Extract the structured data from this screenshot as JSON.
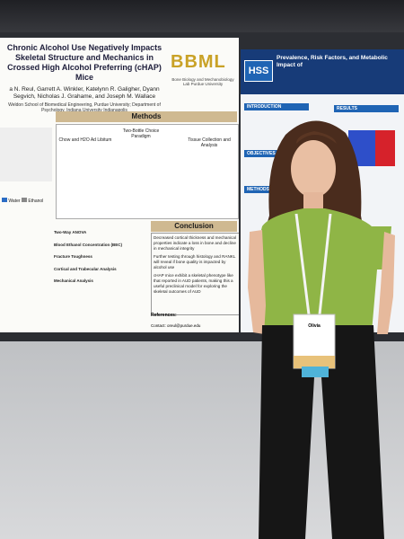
{
  "left_poster": {
    "title": "Chronic Alcohol Use Negatively Impacts Skeletal Structure and Mechanics in Crossed High Alcohol Preferring (cHAP) Mice",
    "authors": "a N. Reul, Garrett A. Winkler, Katelynn R. Galigher, Dyann Segvich, Nicholas J. Grahame, and Joseph M. Wallace",
    "affiliation": "Weldon School of Biomedical Engineering, Purdue University; Department of Psychology, Indiana University Indianapolis",
    "logo": "BBML",
    "logo_caption": "Bone Biology and Mechanobiology Lab Purdue University",
    "methods_title": "Methods",
    "methods_labels": [
      "Chow and H2O Ad Libitum",
      "Two-Bottle Choice Paradigm",
      "Tissue Collection and Analysis"
    ],
    "conclusion_title": "Conclusion",
    "conclusion_points": [
      "Decreased cortical thickness and mechanical properties indicate a loss in bone and decline in mechanical integrity",
      "Further testing through histology and RANKL will reveal if bone quality is impacted by alcohol use",
      "cHAP mice exhibit a skeletal phenotype like that reported in AUD patients, making this a useful preclinical model for exploring the skeletal outcomes of AUD"
    ],
    "results_headings": [
      "Two-Way ANOVA",
      "Blood Ethanol Concentration (BEC)",
      "Fracture Toughness",
      "Cortical and Trabecular Analysis",
      "Mechanical Analysis"
    ],
    "legend": [
      "Water",
      "Ethanol"
    ],
    "references": "References:",
    "contact": "Contact: oreul@purdue.edu"
  },
  "right_poster": {
    "logo": "HSS",
    "title": "Prevalence, Risk Factors, and Metabolic Impact of",
    "sections": [
      "INTRODUCTION",
      "RESULTS",
      "OBJECTIVES",
      "METHODS"
    ]
  },
  "badge": {
    "name": "Olivia"
  }
}
